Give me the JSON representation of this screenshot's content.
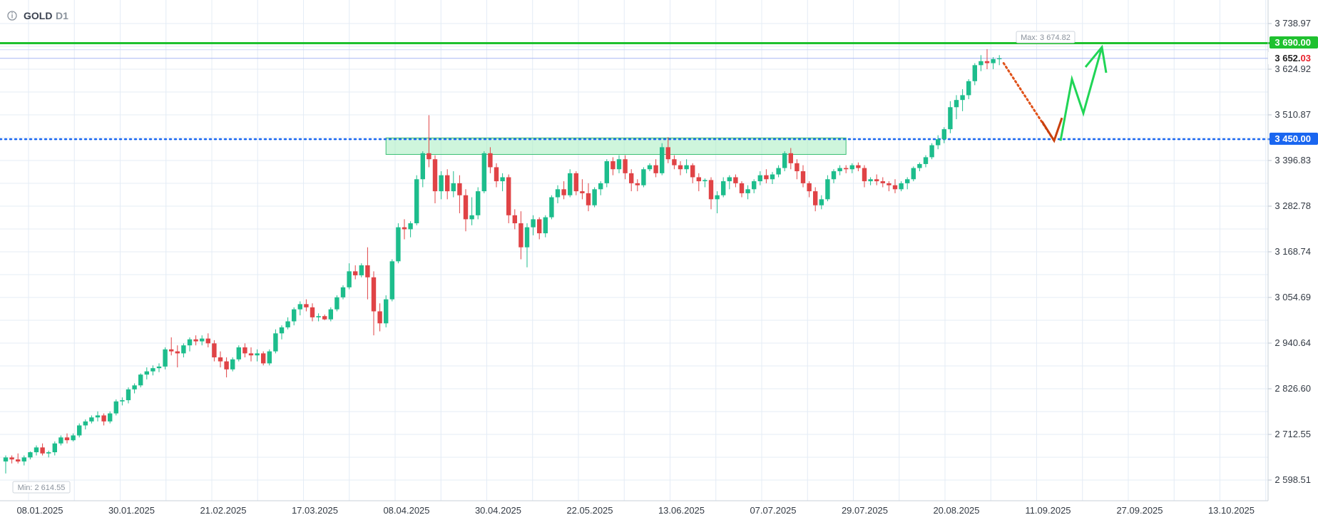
{
  "header": {
    "info_icon": "info-icon",
    "symbol": "GOLD",
    "timeframe": "D1"
  },
  "chart_data": {
    "type": "candlestick",
    "title": "GOLD",
    "timeframe": "D1",
    "y_ticks": [
      "3 738.97",
      "3 624.92",
      "3 510.87",
      "3 396.83",
      "3 282.78",
      "3 168.74",
      "3 054.69",
      "2 940.64",
      "2 826.60",
      "2 712.55",
      "2 598.51"
    ],
    "y_tick_values": [
      3738.97,
      3624.92,
      3510.87,
      3396.83,
      3282.78,
      3168.74,
      3054.69,
      2940.64,
      2826.6,
      2712.55,
      2598.51
    ],
    "x_ticks": [
      "08.01.2025",
      "30.01.2025",
      "21.02.2025",
      "17.03.2025",
      "08.04.2025",
      "30.04.2025",
      "22.05.2025",
      "13.06.2025",
      "07.07.2025",
      "29.07.2025",
      "20.08.2025",
      "11.09.2025",
      "27.09.2025",
      "13.10.2025"
    ],
    "grid": true,
    "max_label": "Max: 3 674.82",
    "min_label": "Min: 2 614.55",
    "levels": [
      {
        "name": "resistance",
        "value": 3690.0,
        "label": "3 690.00",
        "color": "#1fc12f",
        "style": "solid"
      },
      {
        "name": "support",
        "value": 3450.0,
        "label": "3 450.00",
        "color": "#1a66f0",
        "style": "dotted"
      }
    ],
    "current_price": {
      "value": 3652.03,
      "label_main": "3 652.",
      "label_tail": "03"
    },
    "zone": {
      "low": 3412,
      "high": 3453,
      "color": "#a6ecc0",
      "border": "#3cbf74"
    },
    "colors": {
      "up": "#1dbd8c",
      "down": "#e04346",
      "grid": "#e4ecf6",
      "accent_red": "#e8202a"
    },
    "ohlc": [
      [
        2645,
        2660,
        2615,
        2655
      ],
      [
        2655,
        2660,
        2640,
        2650
      ],
      [
        2650,
        2665,
        2640,
        2645
      ],
      [
        2645,
        2660,
        2635,
        2655
      ],
      [
        2655,
        2670,
        2650,
        2668
      ],
      [
        2668,
        2685,
        2660,
        2680
      ],
      [
        2680,
        2690,
        2660,
        2665
      ],
      [
        2665,
        2672,
        2655,
        2668
      ],
      [
        2668,
        2695,
        2660,
        2690
      ],
      [
        2690,
        2710,
        2685,
        2705
      ],
      [
        2705,
        2715,
        2690,
        2698
      ],
      [
        2698,
        2715,
        2695,
        2710
      ],
      [
        2710,
        2740,
        2705,
        2735
      ],
      [
        2735,
        2750,
        2725,
        2745
      ],
      [
        2745,
        2760,
        2740,
        2755
      ],
      [
        2755,
        2770,
        2745,
        2760
      ],
      [
        2760,
        2765,
        2735,
        2745
      ],
      [
        2745,
        2770,
        2740,
        2765
      ],
      [
        2765,
        2800,
        2760,
        2795
      ],
      [
        2795,
        2805,
        2785,
        2798
      ],
      [
        2798,
        2830,
        2790,
        2825
      ],
      [
        2825,
        2840,
        2815,
        2835
      ],
      [
        2835,
        2865,
        2830,
        2862
      ],
      [
        2862,
        2880,
        2850,
        2870
      ],
      [
        2870,
        2885,
        2860,
        2878
      ],
      [
        2878,
        2890,
        2868,
        2882
      ],
      [
        2882,
        2930,
        2875,
        2925
      ],
      [
        2925,
        2955,
        2910,
        2920
      ],
      [
        2920,
        2935,
        2880,
        2915
      ],
      [
        2915,
        2940,
        2905,
        2935
      ],
      [
        2935,
        2955,
        2920,
        2950
      ],
      [
        2950,
        2960,
        2935,
        2945
      ],
      [
        2945,
        2960,
        2935,
        2952
      ],
      [
        2952,
        2965,
        2930,
        2940
      ],
      [
        2940,
        2948,
        2895,
        2905
      ],
      [
        2905,
        2920,
        2880,
        2895
      ],
      [
        2895,
        2905,
        2855,
        2875
      ],
      [
        2875,
        2905,
        2870,
        2900
      ],
      [
        2900,
        2935,
        2895,
        2930
      ],
      [
        2930,
        2940,
        2905,
        2915
      ],
      [
        2915,
        2930,
        2895,
        2910
      ],
      [
        2910,
        2925,
        2895,
        2915
      ],
      [
        2915,
        2920,
        2885,
        2890
      ],
      [
        2890,
        2925,
        2885,
        2920
      ],
      [
        2920,
        2975,
        2915,
        2965
      ],
      [
        2965,
        2985,
        2950,
        2980
      ],
      [
        2980,
        3005,
        2975,
        2995
      ],
      [
        2995,
        3030,
        2985,
        3025
      ],
      [
        3025,
        3045,
        3010,
        3038
      ],
      [
        3038,
        3050,
        3020,
        3030
      ],
      [
        3030,
        3040,
        2995,
        3005
      ],
      [
        3005,
        3015,
        2995,
        3008
      ],
      [
        3008,
        3012,
        2998,
        3000
      ],
      [
        3000,
        3030,
        2995,
        3025
      ],
      [
        3025,
        3060,
        3020,
        3055
      ],
      [
        3055,
        3085,
        3050,
        3080
      ],
      [
        3080,
        3140,
        3075,
        3120
      ],
      [
        3120,
        3135,
        3100,
        3110
      ],
      [
        3110,
        3140,
        3105,
        3135
      ],
      [
        3135,
        3180,
        3050,
        3105
      ],
      [
        3105,
        3120,
        2960,
        3020
      ],
      [
        3020,
        3040,
        2970,
        2990
      ],
      [
        2990,
        3060,
        2980,
        3050
      ],
      [
        3050,
        3150,
        3045,
        3145
      ],
      [
        3145,
        3240,
        3140,
        3230
      ],
      [
        3230,
        3250,
        3200,
        3225
      ],
      [
        3225,
        3245,
        3205,
        3240
      ],
      [
        3240,
        3360,
        3235,
        3350
      ],
      [
        3350,
        3420,
        3330,
        3415
      ],
      [
        3415,
        3510,
        3380,
        3400
      ],
      [
        3400,
        3410,
        3290,
        3320
      ],
      [
        3320,
        3370,
        3300,
        3360
      ],
      [
        3360,
        3375,
        3300,
        3320
      ],
      [
        3320,
        3370,
        3305,
        3340
      ],
      [
        3340,
        3360,
        3265,
        3310
      ],
      [
        3310,
        3325,
        3220,
        3250
      ],
      [
        3250,
        3305,
        3235,
        3260
      ],
      [
        3260,
        3330,
        3250,
        3320
      ],
      [
        3320,
        3420,
        3315,
        3415
      ],
      [
        3415,
        3430,
        3365,
        3380
      ],
      [
        3380,
        3390,
        3330,
        3345
      ],
      [
        3345,
        3365,
        3320,
        3355
      ],
      [
        3355,
        3362,
        3240,
        3260
      ],
      [
        3260,
        3275,
        3225,
        3240
      ],
      [
        3240,
        3270,
        3150,
        3180
      ],
      [
        3180,
        3240,
        3130,
        3230
      ],
      [
        3230,
        3260,
        3210,
        3250
      ],
      [
        3250,
        3255,
        3200,
        3215
      ],
      [
        3215,
        3260,
        3205,
        3255
      ],
      [
        3255,
        3310,
        3250,
        3305
      ],
      [
        3305,
        3335,
        3290,
        3325
      ],
      [
        3325,
        3345,
        3300,
        3310
      ],
      [
        3310,
        3375,
        3305,
        3365
      ],
      [
        3365,
        3370,
        3310,
        3320
      ],
      [
        3320,
        3350,
        3300,
        3315
      ],
      [
        3315,
        3340,
        3270,
        3285
      ],
      [
        3285,
        3330,
        3280,
        3325
      ],
      [
        3325,
        3345,
        3310,
        3340
      ],
      [
        3340,
        3400,
        3330,
        3395
      ],
      [
        3395,
        3405,
        3360,
        3375
      ],
      [
        3375,
        3410,
        3365,
        3400
      ],
      [
        3400,
        3410,
        3350,
        3365
      ],
      [
        3365,
        3375,
        3320,
        3340
      ],
      [
        3340,
        3350,
        3320,
        3335
      ],
      [
        3335,
        3380,
        3330,
        3375
      ],
      [
        3375,
        3390,
        3370,
        3385
      ],
      [
        3385,
        3400,
        3355,
        3365
      ],
      [
        3365,
        3440,
        3360,
        3430
      ],
      [
        3430,
        3455,
        3390,
        3400
      ],
      [
        3400,
        3410,
        3375,
        3385
      ],
      [
        3385,
        3395,
        3360,
        3375
      ],
      [
        3375,
        3400,
        3365,
        3385
      ],
      [
        3385,
        3390,
        3340,
        3355
      ],
      [
        3355,
        3365,
        3320,
        3345
      ],
      [
        3345,
        3352,
        3330,
        3348
      ],
      [
        3348,
        3355,
        3275,
        3300
      ],
      [
        3300,
        3320,
        3265,
        3310
      ],
      [
        3310,
        3355,
        3305,
        3345
      ],
      [
        3345,
        3360,
        3325,
        3355
      ],
      [
        3355,
        3362,
        3330,
        3340
      ],
      [
        3340,
        3345,
        3305,
        3315
      ],
      [
        3315,
        3335,
        3300,
        3325
      ],
      [
        3325,
        3350,
        3315,
        3345
      ],
      [
        3345,
        3370,
        3335,
        3360
      ],
      [
        3360,
        3375,
        3340,
        3350
      ],
      [
        3350,
        3368,
        3338,
        3362
      ],
      [
        3362,
        3385,
        3355,
        3378
      ],
      [
        3378,
        3420,
        3370,
        3415
      ],
      [
        3415,
        3428,
        3375,
        3390
      ],
      [
        3390,
        3400,
        3350,
        3370
      ],
      [
        3370,
        3385,
        3330,
        3340
      ],
      [
        3340,
        3345,
        3305,
        3320
      ],
      [
        3320,
        3330,
        3270,
        3285
      ],
      [
        3285,
        3310,
        3275,
        3300
      ],
      [
        3300,
        3360,
        3295,
        3350
      ],
      [
        3350,
        3375,
        3340,
        3370
      ],
      [
        3370,
        3385,
        3360,
        3378
      ],
      [
        3378,
        3385,
        3365,
        3375
      ],
      [
        3375,
        3390,
        3365,
        3385
      ],
      [
        3385,
        3392,
        3370,
        3378
      ],
      [
        3378,
        3385,
        3330,
        3345
      ],
      [
        3345,
        3355,
        3335,
        3350
      ],
      [
        3350,
        3362,
        3335,
        3345
      ],
      [
        3345,
        3355,
        3330,
        3340
      ],
      [
        3340,
        3345,
        3320,
        3335
      ],
      [
        3335,
        3350,
        3315,
        3325
      ],
      [
        3325,
        3345,
        3320,
        3340
      ],
      [
        3340,
        3355,
        3325,
        3350
      ],
      [
        3350,
        3382,
        3345,
        3378
      ],
      [
        3378,
        3392,
        3370,
        3388
      ],
      [
        3388,
        3410,
        3380,
        3405
      ],
      [
        3405,
        3440,
        3400,
        3435
      ],
      [
        3435,
        3460,
        3425,
        3450
      ],
      [
        3450,
        3480,
        3440,
        3475
      ],
      [
        3475,
        3545,
        3465,
        3530
      ],
      [
        3530,
        3560,
        3500,
        3548
      ],
      [
        3548,
        3575,
        3520,
        3560
      ],
      [
        3560,
        3600,
        3550,
        3595
      ],
      [
        3595,
        3640,
        3585,
        3635
      ],
      [
        3635,
        3660,
        3620,
        3645
      ],
      [
        3645,
        3675,
        3625,
        3640
      ],
      [
        3640,
        3655,
        3625,
        3650
      ],
      [
        3650,
        3660,
        3635,
        3652
      ]
    ],
    "projection": {
      "down_arrow": {
        "from": 3640,
        "to": 3457
      },
      "path": [
        3457,
        3600,
        3515,
        3680
      ]
    }
  }
}
